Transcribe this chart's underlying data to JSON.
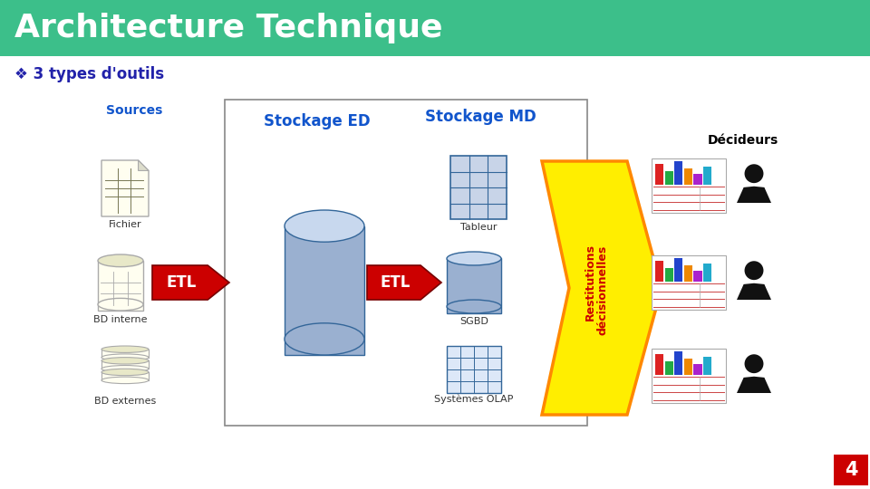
{
  "title": "Architecture Technique",
  "title_bg_color": "#3cbf8a",
  "title_text_color": "#ffffff",
  "subtitle": "❖ 3 types d'outils",
  "subtitle_color": "#2222aa",
  "bg_color": "#ffffff",
  "sources_label": "Sources",
  "stockage_ed_label": "Stockage ED",
  "stockage_md_label": "Stockage MD",
  "decideurs_label": "Décideurs",
  "etl_color": "#cc0000",
  "etl_text_color": "#ffffff",
  "restitutions_bg": "#ffee00",
  "restitutions_border": "#ff8800",
  "restitutions_text_color": "#cc0000",
  "restitutions_line1": "Restitutions",
  "restitutions_line2": "décisionnelles",
  "fichier_label": "Fichier",
  "bd_interne_label": "BD interne",
  "bd_externes_label": "BD externes",
  "tableur_label": "Tableur",
  "sgbd_label": "SGBD",
  "olap_label": "Systèmes OLAP",
  "arrow_color": "#cc1100",
  "cylinder_fill": "#9ab0d0",
  "cylinder_fill_top": "#c8d8ee",
  "cylinder_border": "#336699",
  "sources_color": "#1155cc",
  "stockage_ed_color": "#1155cc",
  "stockage_md_color": "#1155cc",
  "decideurs_color": "#000000",
  "page_num_bg": "#cc0000",
  "page_num_color": "#ffffff",
  "page_num": "4",
  "src_fill": "#fffef0",
  "src_border": "#aaaaaa",
  "tableur_fill": "#c8d4e8",
  "tableur_border": "#336699"
}
